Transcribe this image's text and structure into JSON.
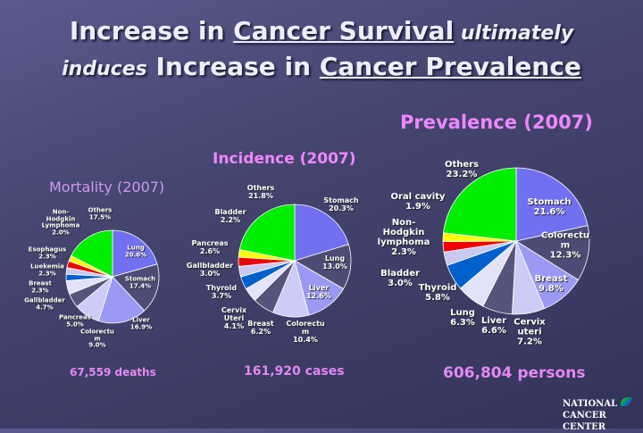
{
  "title": {
    "line1_a": "Increase in ",
    "line1_b": "Cancer Survival",
    "line1_c": " ultimately",
    "line2_a": "induces",
    "line2_b": " Increase in ",
    "line2_c": "Cancer Prevalence"
  },
  "logo": {
    "line1": "NATIONAL",
    "line2": "CANCER CENTER"
  },
  "colors": [
    "#7070f0",
    "#4c4c74",
    "#9a9af4",
    "#ccccf6",
    "#55557c",
    "#e2e2f8",
    "#0060cc",
    "#c8c8f0",
    "#ee0000",
    "#ffff00",
    "#00ee00"
  ],
  "chart_data": [
    {
      "type": "pie",
      "title": "Mortality (2007)",
      "total": "67,559 deaths",
      "start": "12 o'clock, clockwise",
      "slices": [
        {
          "label": "Lung",
          "value": 20.6,
          "text": "20.6%"
        },
        {
          "label": "Stomach",
          "value": 17.4,
          "text": "17.4%"
        },
        {
          "label": "Liver",
          "value": 16.9,
          "text": "16.9%"
        },
        {
          "label": "Colorectu\nm",
          "value": 9.0,
          "text": "9.0%"
        },
        {
          "label": "Pancreas",
          "value": 5.0,
          "text": "5.0%"
        },
        {
          "label": "Gallbladder",
          "value": 4.7,
          "text": "4.7%"
        },
        {
          "label": "Breast",
          "value": 2.3,
          "text": "2.3%"
        },
        {
          "label": "Luekemia",
          "value": 2.3,
          "text": "2.3%"
        },
        {
          "label": "Esophagus",
          "value": 2.3,
          "text": "2.3%"
        },
        {
          "label": "Non-\nHodgkin\nLymphoma",
          "value": 2.0,
          "text": "2.0%"
        },
        {
          "label": "Others",
          "value": 17.5,
          "text": "17.5%"
        }
      ]
    },
    {
      "type": "pie",
      "title": "Incidence (2007)",
      "total": "161,920 cases",
      "start": "12 o'clock, clockwise",
      "slices": [
        {
          "label": "Stomach",
          "value": 20.3,
          "text": "20.3%"
        },
        {
          "label": "Lung",
          "value": 13.0,
          "text": "13.0%"
        },
        {
          "label": "Liver",
          "value": 12.6,
          "text": "12.6%"
        },
        {
          "label": "Colorectu\nm",
          "value": 10.4,
          "text": "10.4%"
        },
        {
          "label": "Breast",
          "value": 6.2,
          "text": "6.2%"
        },
        {
          "label": "Cervix\nUteri",
          "value": 4.1,
          "text": "4.1%"
        },
        {
          "label": "Thyroid",
          "value": 3.7,
          "text": "3.7%"
        },
        {
          "label": "Gallbladder",
          "value": 3.0,
          "text": "3.0%"
        },
        {
          "label": "Pancreas",
          "value": 2.6,
          "text": "2.6%"
        },
        {
          "label": "Bladder",
          "value": 2.2,
          "text": "2.2%"
        },
        {
          "label": "Others",
          "value": 21.8,
          "text": "21.8%"
        }
      ]
    },
    {
      "type": "pie",
      "title": "Prevalence (2007)",
      "total": "606,804 persons",
      "start": "12 o'clock, clockwise",
      "slices": [
        {
          "label": "Stomach",
          "value": 21.6,
          "text": "21.6%"
        },
        {
          "label": "Colorectu\nm",
          "value": 12.3,
          "text": "12.3%"
        },
        {
          "label": "Breast",
          "value": 9.8,
          "text": "9.8%"
        },
        {
          "label": "Cervix\nuteri",
          "value": 7.2,
          "text": "7.2%"
        },
        {
          "label": "Liver",
          "value": 6.6,
          "text": "6.6%"
        },
        {
          "label": "Lung",
          "value": 6.3,
          "text": "6.3%"
        },
        {
          "label": "Thyroid",
          "value": 5.8,
          "text": "5.8%"
        },
        {
          "label": "Bladder",
          "value": 3.0,
          "text": "3.0%"
        },
        {
          "label": "Non-\nHodgkin\nlymphoma",
          "value": 2.3,
          "text": "2.3%"
        },
        {
          "label": "Oral cavity",
          "value": 1.9,
          "text": "1.9%"
        },
        {
          "label": "Others",
          "value": 23.2,
          "text": "23.2%"
        }
      ]
    }
  ]
}
